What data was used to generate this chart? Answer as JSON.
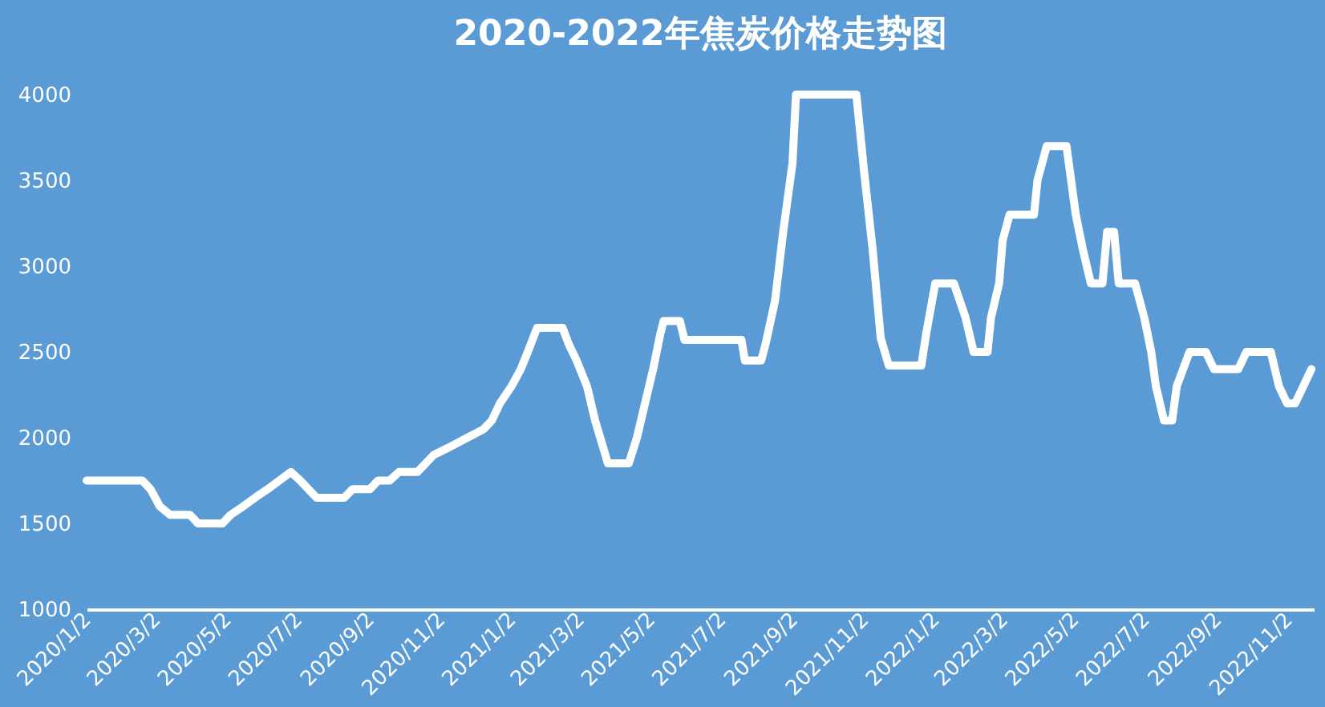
{
  "chart_data": {
    "type": "line",
    "title": "2020-2022年焦炭价格走势图",
    "x": [
      "2020-01-02",
      "2020-02-19",
      "2020-02-26",
      "2020-03-05",
      "2020-03-14",
      "2020-03-31",
      "2020-04-07",
      "2020-04-28",
      "2020-05-05",
      "2020-05-16",
      "2020-05-26",
      "2020-06-06",
      "2020-06-16",
      "2020-06-26",
      "2020-07-04",
      "2020-07-11",
      "2020-07-18",
      "2020-08-11",
      "2020-08-18",
      "2020-09-02",
      "2020-09-09",
      "2020-09-19",
      "2020-09-27",
      "2020-10-13",
      "2020-10-20",
      "2020-10-27",
      "2020-11-11",
      "2020-11-25",
      "2020-12-09",
      "2020-12-16",
      "2020-12-23",
      "2021-01-02",
      "2021-01-10",
      "2021-01-16",
      "2021-01-24",
      "2021-02-15",
      "2021-02-20",
      "2021-02-27",
      "2021-03-08",
      "2021-03-15",
      "2021-03-26",
      "2021-04-13",
      "2021-04-20",
      "2021-04-27",
      "2021-05-04",
      "2021-05-10",
      "2021-05-13",
      "2021-05-27",
      "2021-05-31",
      "2021-07-19",
      "2021-07-22",
      "2021-08-05",
      "2021-08-09",
      "2021-08-17",
      "2021-08-24",
      "2021-09-01",
      "2021-09-04",
      "2021-10-26",
      "2021-11-02",
      "2021-11-09",
      "2021-11-16",
      "2021-11-23",
      "2021-12-21",
      "2021-12-25",
      "2022-01-02",
      "2022-01-18",
      "2022-01-28",
      "2022-02-04",
      "2022-02-16",
      "2022-02-19",
      "2022-02-26",
      "2022-03-01",
      "2022-03-07",
      "2022-03-28",
      "2022-03-31",
      "2022-04-08",
      "2022-04-25",
      "2022-04-29",
      "2022-05-03",
      "2022-05-09",
      "2022-05-16",
      "2022-05-26",
      "2022-05-30",
      "2022-06-05",
      "2022-06-09",
      "2022-06-23",
      "2022-07-01",
      "2022-07-07",
      "2022-07-11",
      "2022-07-18",
      "2022-07-25",
      "2022-07-29",
      "2022-08-09",
      "2022-08-23",
      "2022-08-30",
      "2022-09-20",
      "2022-09-27",
      "2022-10-18",
      "2022-10-25",
      "2022-11-01",
      "2022-11-08",
      "2022-11-15",
      "2022-11-22"
    ],
    "series": [
      {
        "color": "#ffffff",
        "values": [
          1750,
          1750,
          1700,
          1600,
          1550,
          1550,
          1500,
          1500,
          1550,
          1600,
          1650,
          1700,
          1750,
          1800,
          1750,
          1700,
          1650,
          1650,
          1700,
          1700,
          1750,
          1750,
          1800,
          1800,
          1850,
          1900,
          1950,
          2000,
          2050,
          2100,
          2200,
          2300,
          2400,
          2500,
          2640,
          2640,
          2550,
          2450,
          2300,
          2100,
          1850,
          1850,
          2000,
          2200,
          2400,
          2600,
          2680,
          2680,
          2570,
          2570,
          2450,
          2450,
          2550,
          2800,
          3200,
          3600,
          4000,
          4000,
          3530,
          3100,
          2580,
          2420,
          2420,
          2600,
          2900,
          2900,
          2700,
          2500,
          2500,
          2700,
          2900,
          3150,
          3300,
          3300,
          3500,
          3700,
          3700,
          3500,
          3300,
          3100,
          2900,
          2900,
          3200,
          3200,
          2900,
          2900,
          2700,
          2500,
          2300,
          2100,
          2100,
          2300,
          2500,
          2500,
          2400,
          2400,
          2500,
          2500,
          2300,
          2200,
          2200,
          2300,
          2400
        ]
      }
    ],
    "xlim": [
      "2020-01-02",
      "2022-11-24"
    ],
    "xticks": [
      {
        "value": "2020-01-02",
        "label": "2020/1/2"
      },
      {
        "value": "2020-03-02",
        "label": "2020/3/2"
      },
      {
        "value": "2020-05-02",
        "label": "2020/5/2"
      },
      {
        "value": "2020-07-02",
        "label": "2020/7/2"
      },
      {
        "value": "2020-09-02",
        "label": "2020/9/2"
      },
      {
        "value": "2020-11-02",
        "label": "2020/11/2"
      },
      {
        "value": "2021-01-02",
        "label": "2021/1/2"
      },
      {
        "value": "2021-03-02",
        "label": "2021/3/2"
      },
      {
        "value": "2021-05-02",
        "label": "2021/5/2"
      },
      {
        "value": "2021-07-02",
        "label": "2021/7/2"
      },
      {
        "value": "2021-09-02",
        "label": "2021/9/2"
      },
      {
        "value": "2021-11-02",
        "label": "2021/11/2"
      },
      {
        "value": "2022-01-02",
        "label": "2022/1/2"
      },
      {
        "value": "2022-03-02",
        "label": "2022/3/2"
      },
      {
        "value": "2022-05-02",
        "label": "2022/5/2"
      },
      {
        "value": "2022-07-02",
        "label": "2022/7/2"
      },
      {
        "value": "2022-09-02",
        "label": "2022/9/2"
      },
      {
        "value": "2022-11-02",
        "label": "2022/11/2"
      }
    ],
    "ylim": [
      1000,
      4000
    ],
    "yticks": [
      1000,
      1500,
      2000,
      2500,
      3000,
      3500,
      4000
    ],
    "grid": false,
    "marker": "none",
    "line_style": "solid"
  }
}
